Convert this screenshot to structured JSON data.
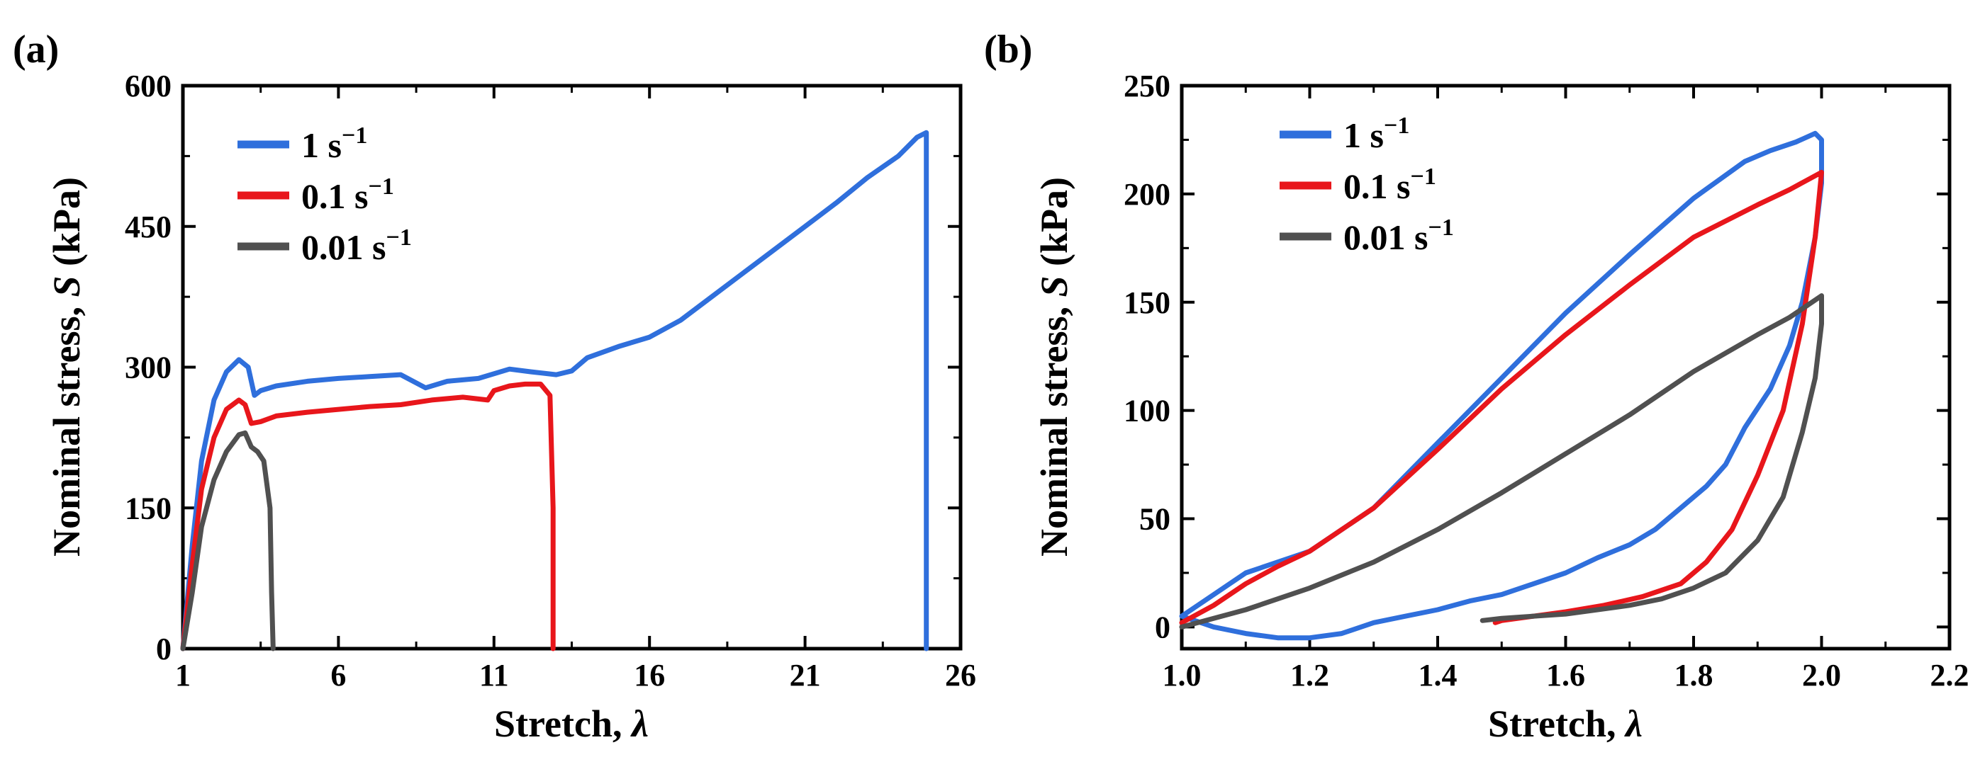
{
  "chart_data": [
    {
      "panel_label": "(a)",
      "type": "line",
      "xlabel": "Stretch, ",
      "xlabel_symbol": "λ",
      "ylabel": "Nominal stress, ",
      "ylabel_symbol": "S",
      "ylabel_unit": " (kPa)",
      "xlim": [
        1,
        26
      ],
      "ylim": [
        0,
        600
      ],
      "xticks": [
        1,
        6,
        11,
        16,
        21,
        26
      ],
      "yticks": [
        0,
        150,
        300,
        450,
        600
      ],
      "xtick_labels": [
        "1",
        "6",
        "11",
        "16",
        "21",
        "26"
      ],
      "ytick_labels": [
        "0",
        "150",
        "300",
        "450",
        "600"
      ],
      "legend_position": "top-left",
      "series": [
        {
          "name": "1 s⁻¹",
          "name_base": "1 s",
          "name_sup": "−1",
          "color": "#2f6fdc",
          "x": [
            1.0,
            1.3,
            1.6,
            2.0,
            2.4,
            2.8,
            3.1,
            3.3,
            3.5,
            4.0,
            5.0,
            6.0,
            7.0,
            8.0,
            8.8,
            9.5,
            10.5,
            11.5,
            12.2,
            13.0,
            13.5,
            14.0,
            15.0,
            16.0,
            17.0,
            18.0,
            19.0,
            20.0,
            21.0,
            22.0,
            23.0,
            24.0,
            24.6,
            24.9,
            24.9
          ],
          "y": [
            0,
            110,
            200,
            265,
            295,
            308,
            300,
            270,
            275,
            280,
            285,
            288,
            290,
            292,
            278,
            285,
            288,
            298,
            295,
            292,
            296,
            310,
            322,
            332,
            350,
            375,
            400,
            425,
            450,
            475,
            502,
            525,
            545,
            550,
            0
          ]
        },
        {
          "name": "0.1 s⁻¹",
          "name_base": "0.1 s",
          "name_sup": "−1",
          "color": "#e8161b",
          "x": [
            1.0,
            1.3,
            1.6,
            2.0,
            2.4,
            2.8,
            3.0,
            3.2,
            3.5,
            4.0,
            5.0,
            6.0,
            7.0,
            8.0,
            9.0,
            10.0,
            10.8,
            11.0,
            11.5,
            12.0,
            12.5,
            12.8,
            12.9,
            12.9
          ],
          "y": [
            0,
            90,
            170,
            225,
            255,
            265,
            260,
            240,
            242,
            248,
            252,
            255,
            258,
            260,
            265,
            268,
            265,
            275,
            280,
            282,
            282,
            270,
            150,
            0
          ]
        },
        {
          "name": "0.01 s⁻¹",
          "name_base": "0.01 s",
          "name_sup": "−1",
          "color": "#505050",
          "x": [
            1.0,
            1.3,
            1.6,
            2.0,
            2.4,
            2.8,
            3.0,
            3.2,
            3.4,
            3.6,
            3.8,
            3.85,
            3.9
          ],
          "y": [
            0,
            60,
            130,
            180,
            210,
            228,
            230,
            215,
            210,
            200,
            150,
            60,
            0
          ]
        }
      ]
    },
    {
      "panel_label": "(b)",
      "type": "line",
      "xlabel": "Stretch, ",
      "xlabel_symbol": "λ",
      "ylabel": "Nominal stress, ",
      "ylabel_symbol": "S",
      "ylabel_unit": " (kPa)",
      "xlim": [
        1.0,
        2.2
      ],
      "ylim": [
        -10,
        250
      ],
      "xticks": [
        1.0,
        1.2,
        1.4,
        1.6,
        1.8,
        2.0,
        2.2
      ],
      "yticks": [
        0,
        50,
        100,
        150,
        200,
        250
      ],
      "xtick_labels": [
        "1.0",
        "1.2",
        "1.4",
        "1.6",
        "1.8",
        "2.0",
        "2.2"
      ],
      "ytick_labels": [
        "0",
        "50",
        "100",
        "150",
        "200",
        "250"
      ],
      "legend_position": "top-left",
      "series": [
        {
          "name": "1 s⁻¹",
          "name_base": "1 s",
          "name_sup": "−1",
          "color": "#2f6fdc",
          "x": [
            1.0,
            1.05,
            1.1,
            1.15,
            1.2,
            1.3,
            1.4,
            1.5,
            1.6,
            1.7,
            1.8,
            1.88,
            1.92,
            1.96,
            1.99,
            2.0,
            2.0,
            1.99,
            1.97,
            1.95,
            1.92,
            1.88,
            1.85,
            1.82,
            1.78,
            1.74,
            1.7,
            1.65,
            1.6,
            1.55,
            1.5,
            1.45,
            1.4,
            1.35,
            1.3,
            1.25,
            1.2,
            1.15,
            1.1,
            1.05,
            1.0
          ],
          "y": [
            5,
            15,
            25,
            30,
            35,
            55,
            85,
            115,
            145,
            172,
            198,
            215,
            220,
            224,
            228,
            225,
            205,
            180,
            150,
            130,
            110,
            92,
            75,
            65,
            55,
            45,
            38,
            32,
            25,
            20,
            15,
            12,
            8,
            5,
            2,
            -3,
            -5,
            -5,
            -3,
            0,
            5
          ]
        },
        {
          "name": "0.1 s⁻¹",
          "name_base": "0.1 s",
          "name_sup": "−1",
          "color": "#e8161b",
          "x": [
            1.0,
            1.05,
            1.1,
            1.15,
            1.2,
            1.3,
            1.4,
            1.5,
            1.6,
            1.7,
            1.8,
            1.9,
            1.95,
            2.0,
            1.99,
            1.97,
            1.94,
            1.9,
            1.86,
            1.82,
            1.78,
            1.72,
            1.66,
            1.6,
            1.55,
            1.5,
            1.49
          ],
          "y": [
            2,
            10,
            20,
            28,
            35,
            55,
            82,
            110,
            135,
            158,
            180,
            195,
            202,
            210,
            180,
            140,
            100,
            70,
            45,
            30,
            20,
            14,
            10,
            7,
            5,
            3,
            2
          ]
        },
        {
          "name": "0.01 s⁻¹",
          "name_base": "0.01 s",
          "name_sup": "−1",
          "color": "#505050",
          "x": [
            1.0,
            1.1,
            1.2,
            1.3,
            1.4,
            1.5,
            1.6,
            1.7,
            1.75,
            1.8,
            1.9,
            1.95,
            2.0,
            2.0,
            1.99,
            1.97,
            1.94,
            1.9,
            1.85,
            1.8,
            1.75,
            1.7,
            1.65,
            1.6,
            1.55,
            1.5,
            1.47
          ],
          "y": [
            0,
            8,
            18,
            30,
            45,
            62,
            80,
            98,
            108,
            118,
            135,
            143,
            153,
            140,
            115,
            90,
            60,
            40,
            25,
            18,
            13,
            10,
            8,
            6,
            5,
            4,
            3
          ]
        }
      ]
    }
  ]
}
